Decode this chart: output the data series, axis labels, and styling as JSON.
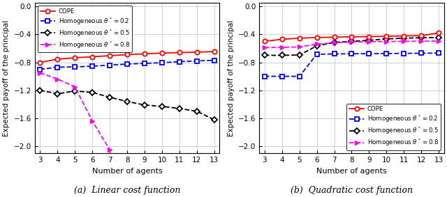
{
  "agents": [
    3,
    4,
    5,
    6,
    7,
    8,
    9,
    10,
    11,
    12,
    13
  ],
  "linear": {
    "cope": [
      -0.8,
      -0.755,
      -0.735,
      -0.72,
      -0.705,
      -0.69,
      -0.678,
      -0.668,
      -0.66,
      -0.655,
      -0.645
    ],
    "hom02": [
      -0.9,
      -0.87,
      -0.865,
      -0.855,
      -0.84,
      -0.825,
      -0.815,
      -0.805,
      -0.79,
      -0.78,
      -0.77
    ],
    "hom05": [
      -1.2,
      -1.25,
      -1.21,
      -1.23,
      -1.3,
      -1.36,
      -1.41,
      -1.43,
      -1.46,
      -1.5,
      -1.62
    ],
    "hom08_x": [
      3,
      4,
      5,
      6,
      7
    ],
    "hom08": [
      -0.95,
      -1.04,
      -1.15,
      -1.64,
      -2.05
    ]
  },
  "quadratic": {
    "cope": [
      -0.5,
      -0.47,
      -0.455,
      -0.445,
      -0.44,
      -0.435,
      -0.432,
      -0.428,
      -0.422,
      -0.418,
      -0.38
    ],
    "hom02_x": [
      3,
      4,
      5,
      6,
      7,
      8,
      9,
      10,
      11,
      12,
      13
    ],
    "hom02": [
      -1.0,
      -1.0,
      -1.0,
      -0.685,
      -0.68,
      -0.678,
      -0.676,
      -0.674,
      -0.672,
      -0.67,
      -0.668
    ],
    "hom05": [
      -0.7,
      -0.7,
      -0.695,
      -0.565,
      -0.515,
      -0.5,
      -0.485,
      -0.465,
      -0.455,
      -0.448,
      -0.445
    ],
    "hom08": [
      -0.59,
      -0.585,
      -0.58,
      -0.54,
      -0.52,
      -0.51,
      -0.505,
      -0.502,
      -0.5,
      -0.498,
      -0.496
    ]
  },
  "colors": {
    "cope": "#FF0000",
    "hom02": "#0000FF",
    "hom05": "#000000",
    "hom08": "#FF00FF"
  },
  "ylabel": "Expected payoff of the principal",
  "xlabel": "Number of agents",
  "title_left": "(a)  Linear cost function",
  "title_right": "(b)  Quadratic cost function",
  "ylim": [
    -2.1,
    0.05
  ],
  "xlim": [
    2.7,
    13.3
  ],
  "yticks": [
    0,
    -0.4,
    -0.8,
    -1.2,
    -1.6,
    -2.0
  ],
  "xticks": [
    3,
    4,
    5,
    6,
    7,
    8,
    9,
    10,
    11,
    12,
    13
  ],
  "legend_labels": [
    "COPE",
    "Homogeneous $\\theta^* = 0.2$",
    "Homogeneous $\\theta^* = 0.5$",
    "Homogeneous $\\theta^* = 0.8$"
  ]
}
